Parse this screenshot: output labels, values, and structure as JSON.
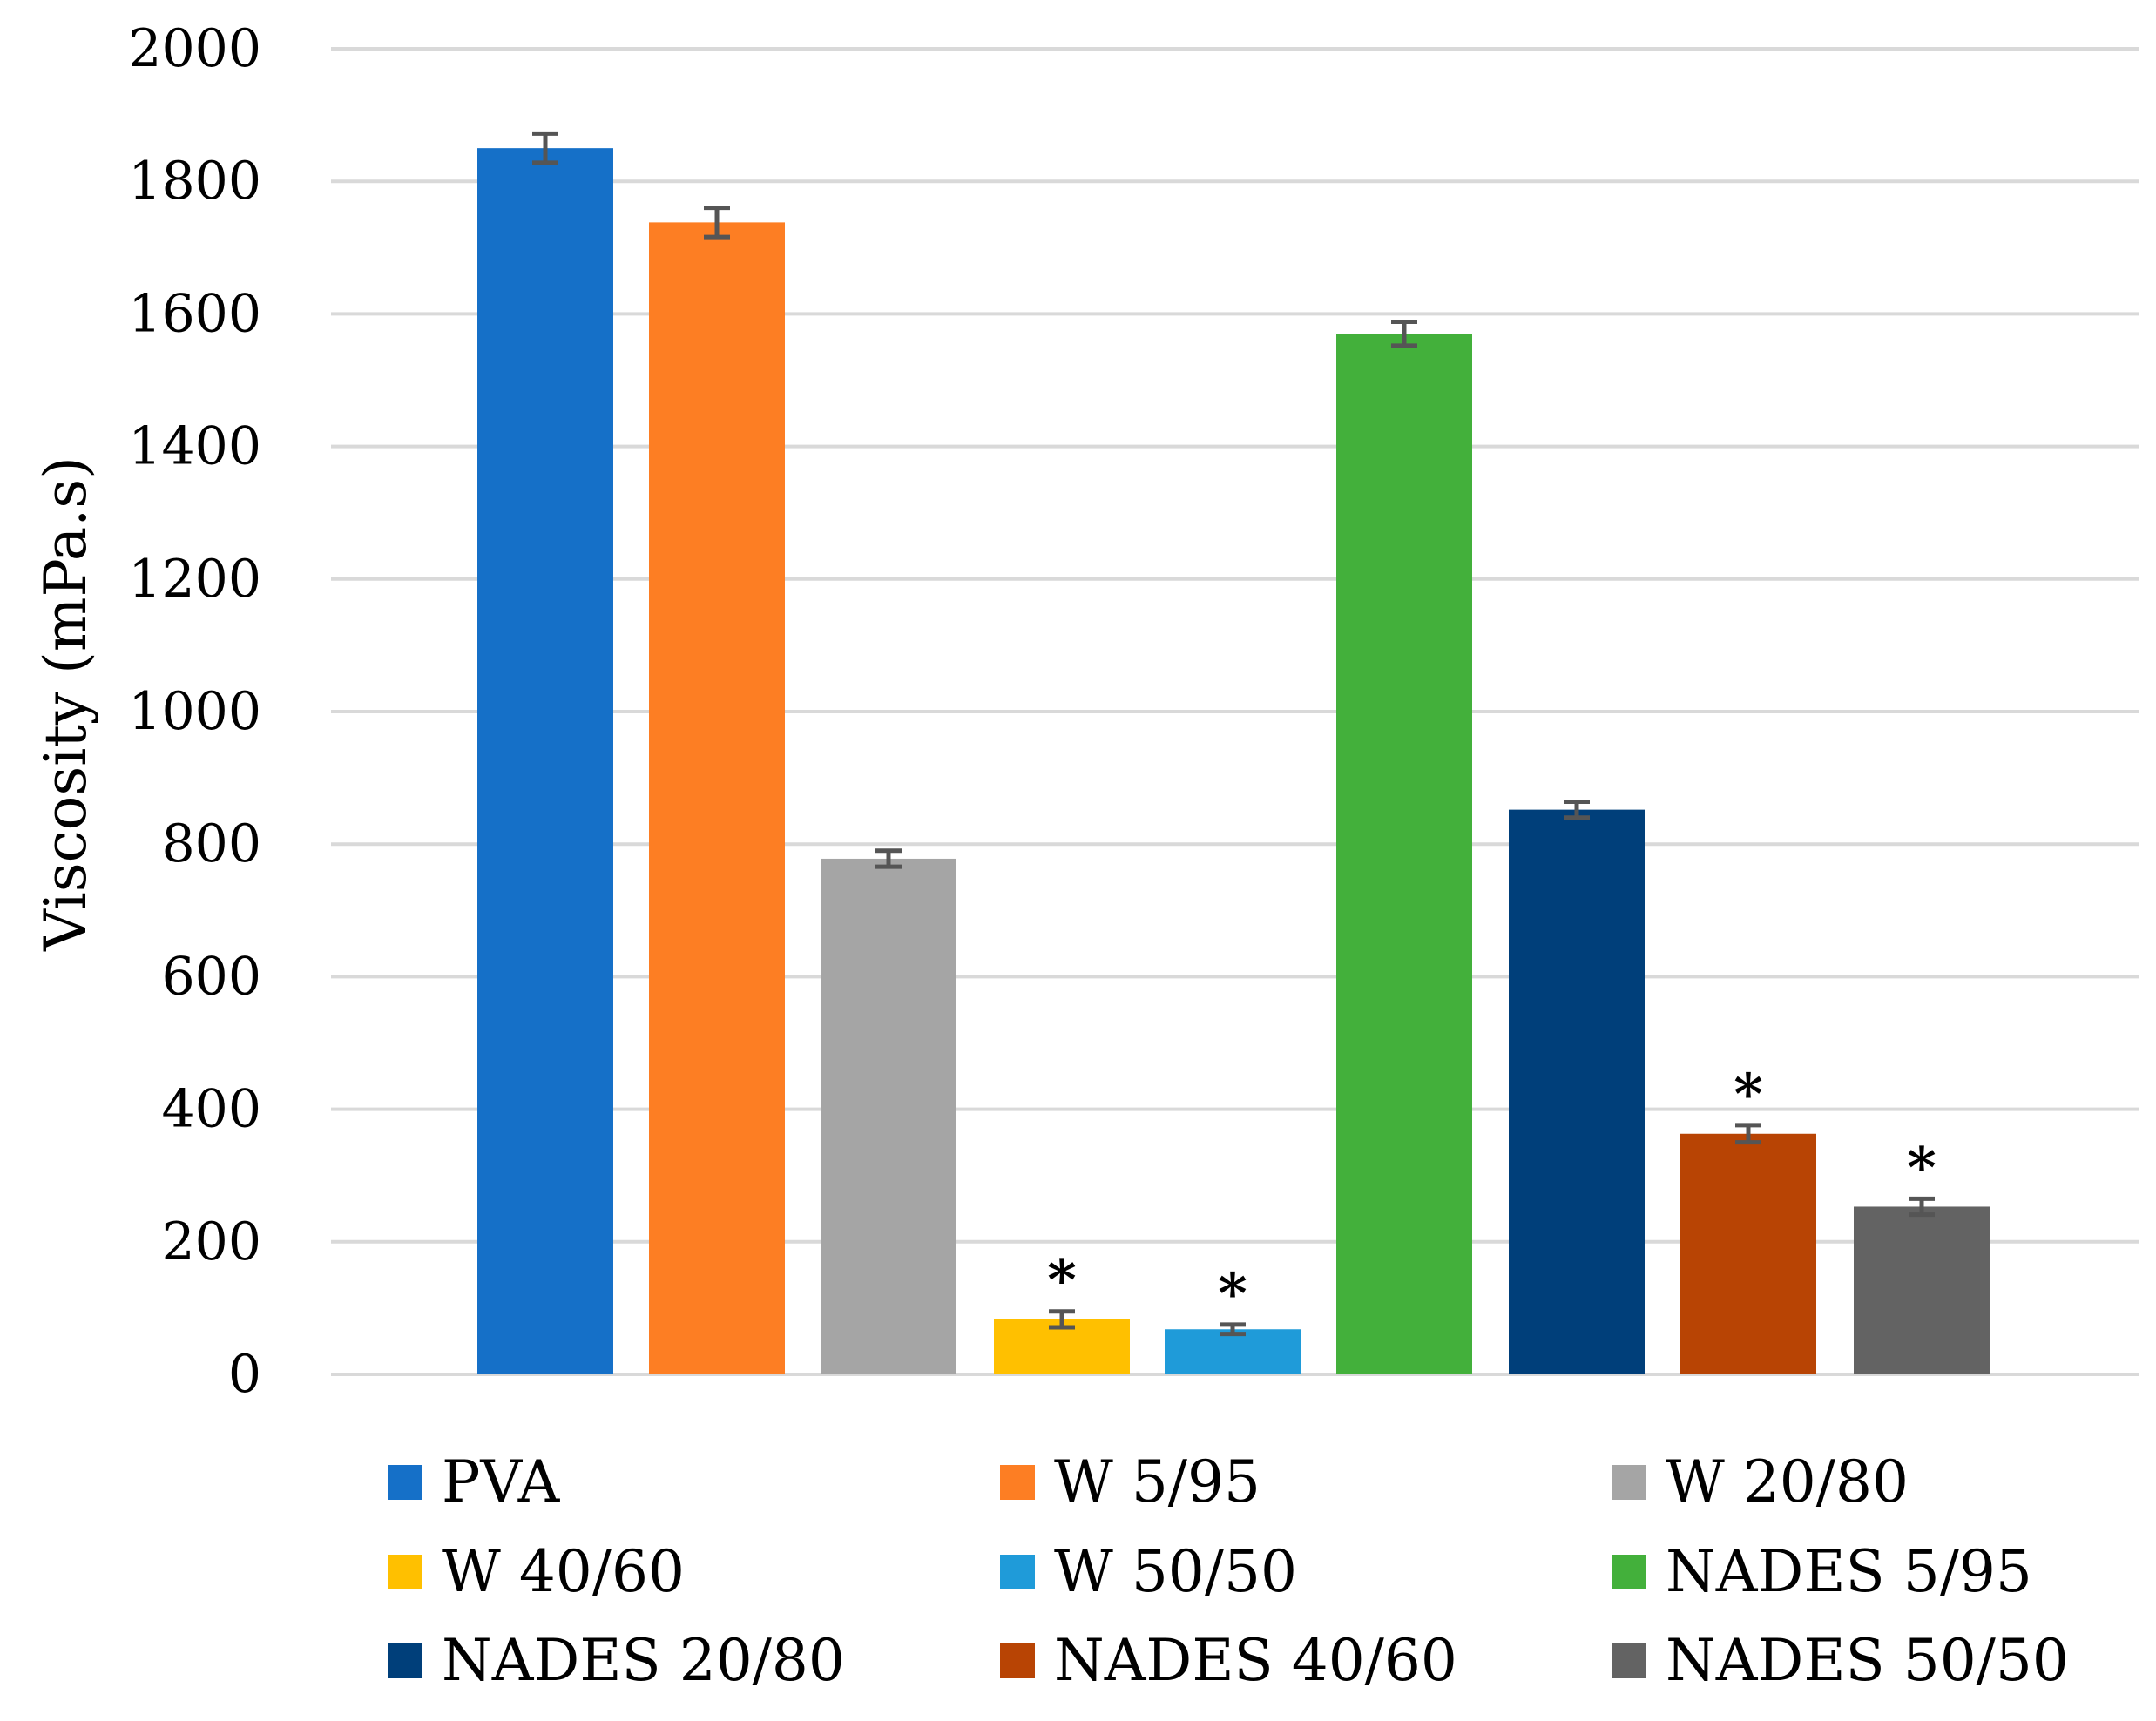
{
  "chart_data": {
    "type": "bar",
    "title": "",
    "xlabel": "",
    "ylabel": "Viscosity (mPa.s)",
    "ylim": [
      0,
      2000
    ],
    "yticks": [
      "0",
      "200",
      "400",
      "600",
      "800",
      "1000",
      "1200",
      "1400",
      "1600",
      "1800",
      "2000"
    ],
    "grid": true,
    "legend_position": "bottom",
    "series": [
      {
        "name": "PVA",
        "value": 1850,
        "error": 22,
        "color": "#1570C8",
        "significant": false
      },
      {
        "name": "W 5/95",
        "value": 1738,
        "error": 22,
        "color": "#FD7E23",
        "significant": false
      },
      {
        "name": "W 20/80",
        "value": 778,
        "error": 12,
        "color": "#A5A5A5",
        "significant": false
      },
      {
        "name": "W 40/60",
        "value": 83,
        "error": 12,
        "color": "#FFC000",
        "significant": true
      },
      {
        "name": "W 50/50",
        "value": 68,
        "error": 7,
        "color": "#1F9BD9",
        "significant": true
      },
      {
        "name": "NADES 5/95",
        "value": 1570,
        "error": 18,
        "color": "#43B03B",
        "significant": false
      },
      {
        "name": "NADES 20/80",
        "value": 852,
        "error": 12,
        "color": "#003F7A",
        "significant": false
      },
      {
        "name": "NADES 40/60",
        "value": 363,
        "error": 13,
        "color": "#B84404",
        "significant": true
      },
      {
        "name": "NADES 50/50",
        "value": 253,
        "error": 12,
        "color": "#636363",
        "significant": true
      }
    ],
    "significance_marker": "*"
  }
}
